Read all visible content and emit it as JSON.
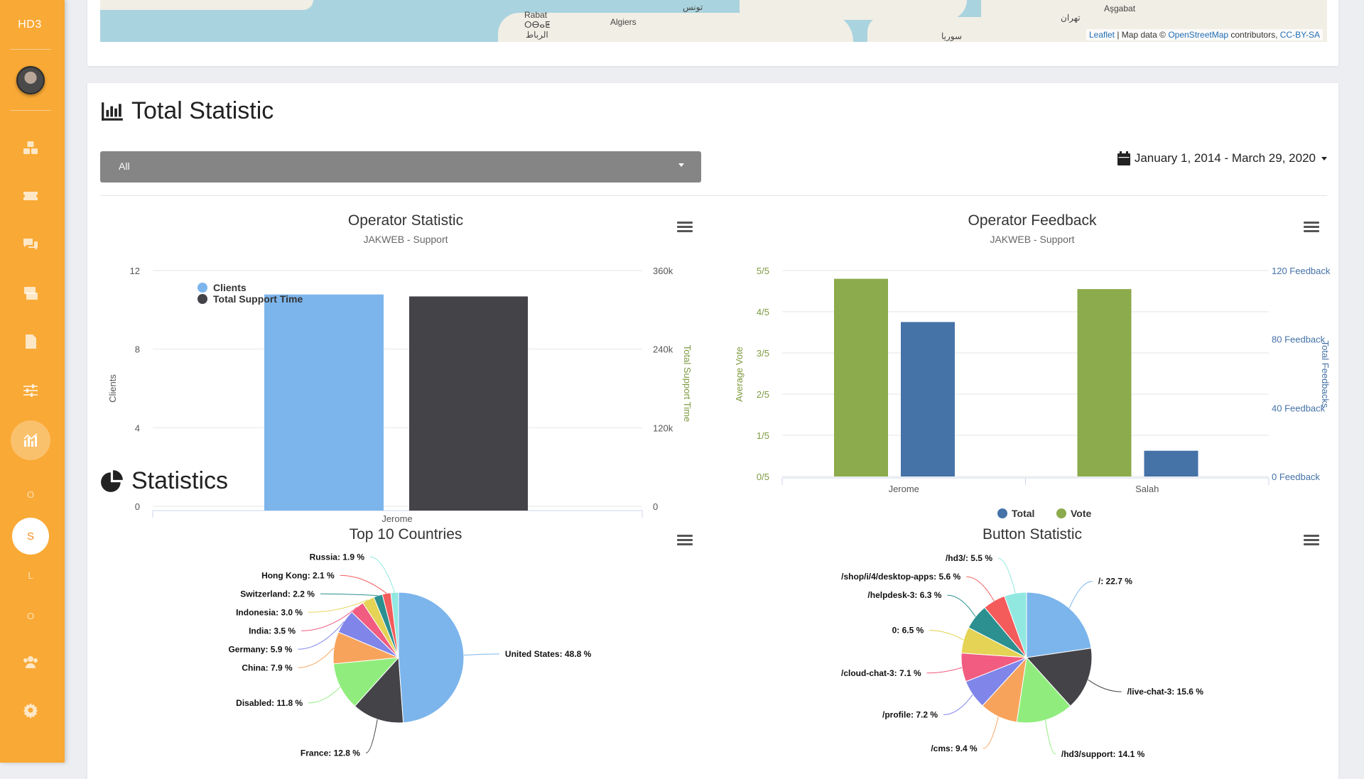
{
  "sidebar": {
    "brand": "HD3",
    "letters": [
      "O",
      "S",
      "L",
      "O"
    ],
    "icons": [
      "dashboard-icon",
      "ticket-icon",
      "chat-icon",
      "inbox-icon",
      "file-icon",
      "sliders-icon",
      "statistics-icon",
      "users-icon",
      "settings-icon"
    ]
  },
  "map": {
    "labels": [
      "Rabat",
      "ⵔⴱⴰⵟ",
      "الرباط",
      "Algiers",
      "تونس",
      "Aşgabat",
      "تهران",
      "سوريا"
    ],
    "attribution": {
      "leaflet": "Leaflet",
      "sep": " | Map data © ",
      "osm": "OpenStreetMap",
      "contributors": " contributors, ",
      "license": "CC-BY-SA"
    }
  },
  "total_statistic": {
    "title": "Total Statistic",
    "select_value": "All",
    "date_range": "January 1, 2014 - March 29, 2020"
  },
  "statistics": {
    "title": "Statistics"
  },
  "chart_data": [
    {
      "type": "bar",
      "title": "Operator Statistic",
      "subtitle": "JAKWEB - Support",
      "categories": [
        "Jerome"
      ],
      "series": [
        {
          "name": "Clients",
          "values": [
            11
          ],
          "axis": "left",
          "color": "#7cb5ec"
        },
        {
          "name": "Total Support Time",
          "values": [
            327000
          ],
          "axis": "right",
          "color": "#434348"
        }
      ],
      "y_left": {
        "label": "Clients",
        "ticks": [
          "0",
          "4",
          "8",
          "12"
        ],
        "range": [
          0,
          12
        ]
      },
      "y_right": {
        "label": "Total Support Time",
        "ticks": [
          "0",
          "120k",
          "240k",
          "360k"
        ],
        "range": [
          0,
          360000
        ]
      },
      "legend": "top-left-inside"
    },
    {
      "type": "bar",
      "title": "Operator Feedback",
      "subtitle": "JAKWEB - Support",
      "categories": [
        "Jerome",
        "Salah"
      ],
      "series": [
        {
          "name": "Vote",
          "values": [
            4.8,
            4.55
          ],
          "axis": "left",
          "color": "#8bab4c"
        },
        {
          "name": "Total",
          "values": [
            90,
            15
          ],
          "axis": "right",
          "color": "#4572a7"
        }
      ],
      "y_left": {
        "label": "Average Vote",
        "ticks": [
          "0/5",
          "1/5",
          "2/5",
          "3/5",
          "4/5",
          "5/5"
        ],
        "range": [
          0,
          5
        ]
      },
      "y_right": {
        "label": "Total Feedbacks",
        "ticks": [
          "0 Feedback",
          "40 Feedback",
          "80 Feedback",
          "120 Feedback"
        ],
        "range": [
          0,
          120
        ]
      },
      "legend_order": [
        "Total",
        "Vote"
      ],
      "legend": "bottom"
    },
    {
      "type": "pie",
      "title": "Top 10 Countries",
      "slices": [
        {
          "label": "United States",
          "value": 48.8,
          "color": "#7cb5ec"
        },
        {
          "label": "France",
          "value": 12.8,
          "color": "#434348"
        },
        {
          "label": "Disabled",
          "value": 11.8,
          "color": "#90ed7d"
        },
        {
          "label": "China",
          "value": 7.9,
          "color": "#f7a35c"
        },
        {
          "label": "Germany",
          "value": 5.9,
          "color": "#8085e9"
        },
        {
          "label": "India",
          "value": 3.5,
          "color": "#f15c80"
        },
        {
          "label": "Indonesia",
          "value": 3.0,
          "color": "#e4d354"
        },
        {
          "label": "Switzerland",
          "value": 2.2,
          "color": "#2b908f"
        },
        {
          "label": "Hong Kong",
          "value": 2.1,
          "color": "#f45b5b"
        },
        {
          "label": "Russia",
          "value": 1.9,
          "color": "#91e8e1"
        }
      ]
    },
    {
      "type": "pie",
      "title": "Button Statistic",
      "slices": [
        {
          "label": "/",
          "value": 22.7,
          "color": "#7cb5ec"
        },
        {
          "label": "/live-chat-3",
          "value": 15.6,
          "color": "#434348"
        },
        {
          "label": "/hd3/support",
          "value": 14.1,
          "color": "#90ed7d"
        },
        {
          "label": "/cms",
          "value": 9.4,
          "color": "#f7a35c"
        },
        {
          "label": "/profile",
          "value": 7.2,
          "color": "#8085e9"
        },
        {
          "label": "/cloud-chat-3",
          "value": 7.1,
          "color": "#f15c80"
        },
        {
          "label": "0",
          "value": 6.5,
          "color": "#e4d354"
        },
        {
          "label": "/helpdesk-3",
          "value": 6.3,
          "color": "#2b908f"
        },
        {
          "label": "/shop/i/4/desktop-apps",
          "value": 5.6,
          "color": "#f45b5b"
        },
        {
          "label": "/hd3/",
          "value": 5.5,
          "color": "#91e8e1"
        }
      ]
    }
  ]
}
